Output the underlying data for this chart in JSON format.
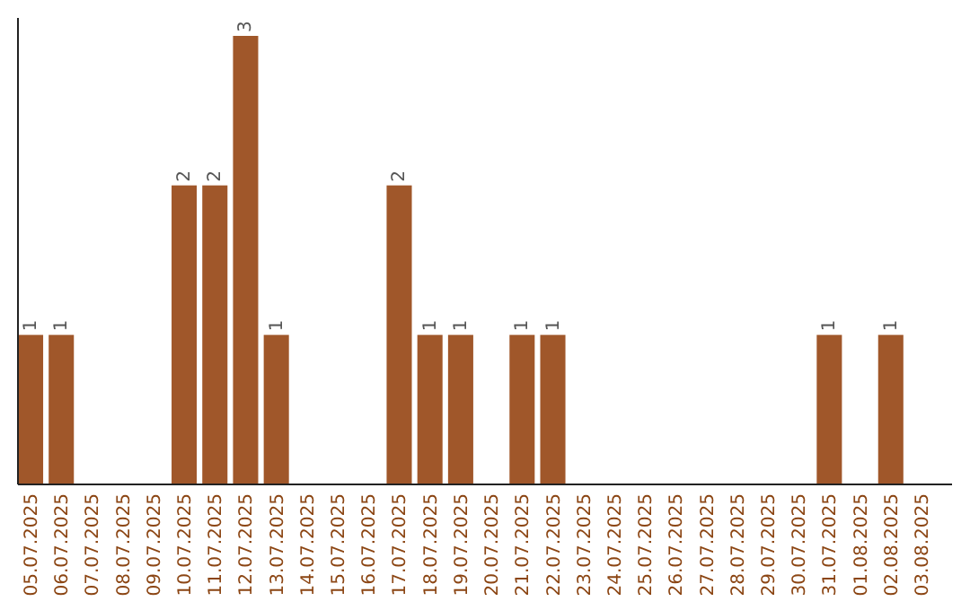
{
  "chart_data": {
    "type": "bar",
    "categories": [
      "05.07.2025",
      "06.07.2025",
      "07.07.2025",
      "08.07.2025",
      "09.07.2025",
      "10.07.2025",
      "11.07.2025",
      "12.07.2025",
      "13.07.2025",
      "14.07.2025",
      "15.07.2025",
      "16.07.2025",
      "17.07.2025",
      "18.07.2025",
      "19.07.2025",
      "20.07.2025",
      "21.07.2025",
      "22.07.2025",
      "23.07.2025",
      "24.07.2025",
      "25.07.2025",
      "26.07.2025",
      "27.07.2025",
      "28.07.2025",
      "29.07.2025",
      "30.07.2025",
      "31.07.2025",
      "01.08.2025",
      "02.08.2025",
      "03.08.2025"
    ],
    "values": [
      1,
      1,
      0,
      0,
      0,
      2,
      2,
      3,
      1,
      0,
      0,
      0,
      2,
      1,
      1,
      0,
      1,
      1,
      0,
      0,
      0,
      0,
      0,
      0,
      0,
      0,
      1,
      0,
      1,
      0
    ],
    "value_labels": [
      "1",
      "1",
      null,
      null,
      null,
      "2",
      "2",
      "3",
      "1",
      null,
      null,
      null,
      "2",
      "1",
      "1",
      null,
      "1",
      "1",
      null,
      null,
      null,
      null,
      null,
      null,
      null,
      null,
      "1",
      null,
      "1",
      null
    ],
    "color": "#a0572a"
  }
}
